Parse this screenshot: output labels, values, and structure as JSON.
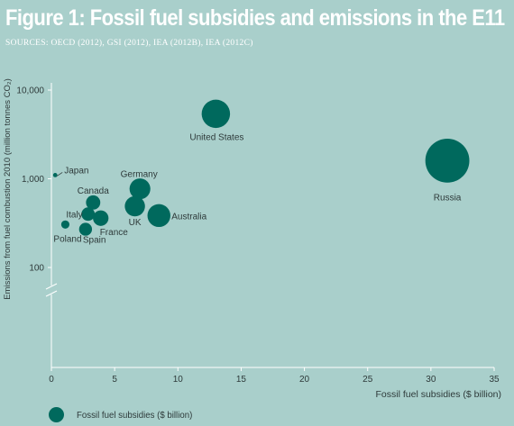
{
  "title": "Figure 1: Fossil fuel subsidies and emissions in the E11",
  "sources": "SOURCES: OECD (2012), GSI (2012), IEA (2012B), IEA (2012C)",
  "legend": {
    "label": "Fossil fuel subsidies ($ billion)"
  },
  "colors": {
    "background": "#a9cfcb",
    "bubble": "#00695d",
    "text": "#2e3a3a"
  },
  "chart_data": {
    "type": "scatter",
    "bubble": true,
    "xlabel": "Fossil fuel subsidies ($ billion)",
    "ylabel": "Emissions from fuel combustion 2010 (million tonnes CO₂)",
    "xlim": [
      0,
      35
    ],
    "ylim": [
      10,
      10000
    ],
    "y_scale": "log",
    "y_axis_break": true,
    "grid": false,
    "x_ticks": [
      "0",
      "5",
      "10",
      "15",
      "20",
      "25",
      "30",
      "35"
    ],
    "y_ticks": [
      "100",
      "1,000",
      "10,000"
    ],
    "points": [
      {
        "label": "Russia",
        "x": 31.3,
        "y": 1600,
        "size": 31.3
      },
      {
        "label": "United States",
        "x": 13.0,
        "y": 5400,
        "size": 13.0
      },
      {
        "label": "Australia",
        "x": 8.5,
        "y": 385,
        "size": 8.5
      },
      {
        "label": "Germany",
        "x": 7.0,
        "y": 770,
        "size": 7.0
      },
      {
        "label": "UK",
        "x": 6.6,
        "y": 490,
        "size": 6.6
      },
      {
        "label": "France",
        "x": 3.9,
        "y": 360,
        "size": 3.9
      },
      {
        "label": "Canada",
        "x": 3.3,
        "y": 540,
        "size": 3.3
      },
      {
        "label": "Italy",
        "x": 2.9,
        "y": 400,
        "size": 2.9
      },
      {
        "label": "Spain",
        "x": 2.7,
        "y": 270,
        "size": 2.7
      },
      {
        "label": "Poland",
        "x": 1.1,
        "y": 305,
        "size": 1.1
      },
      {
        "label": "Japan",
        "x": 0.3,
        "y": 1100,
        "size": 0.3
      }
    ]
  }
}
